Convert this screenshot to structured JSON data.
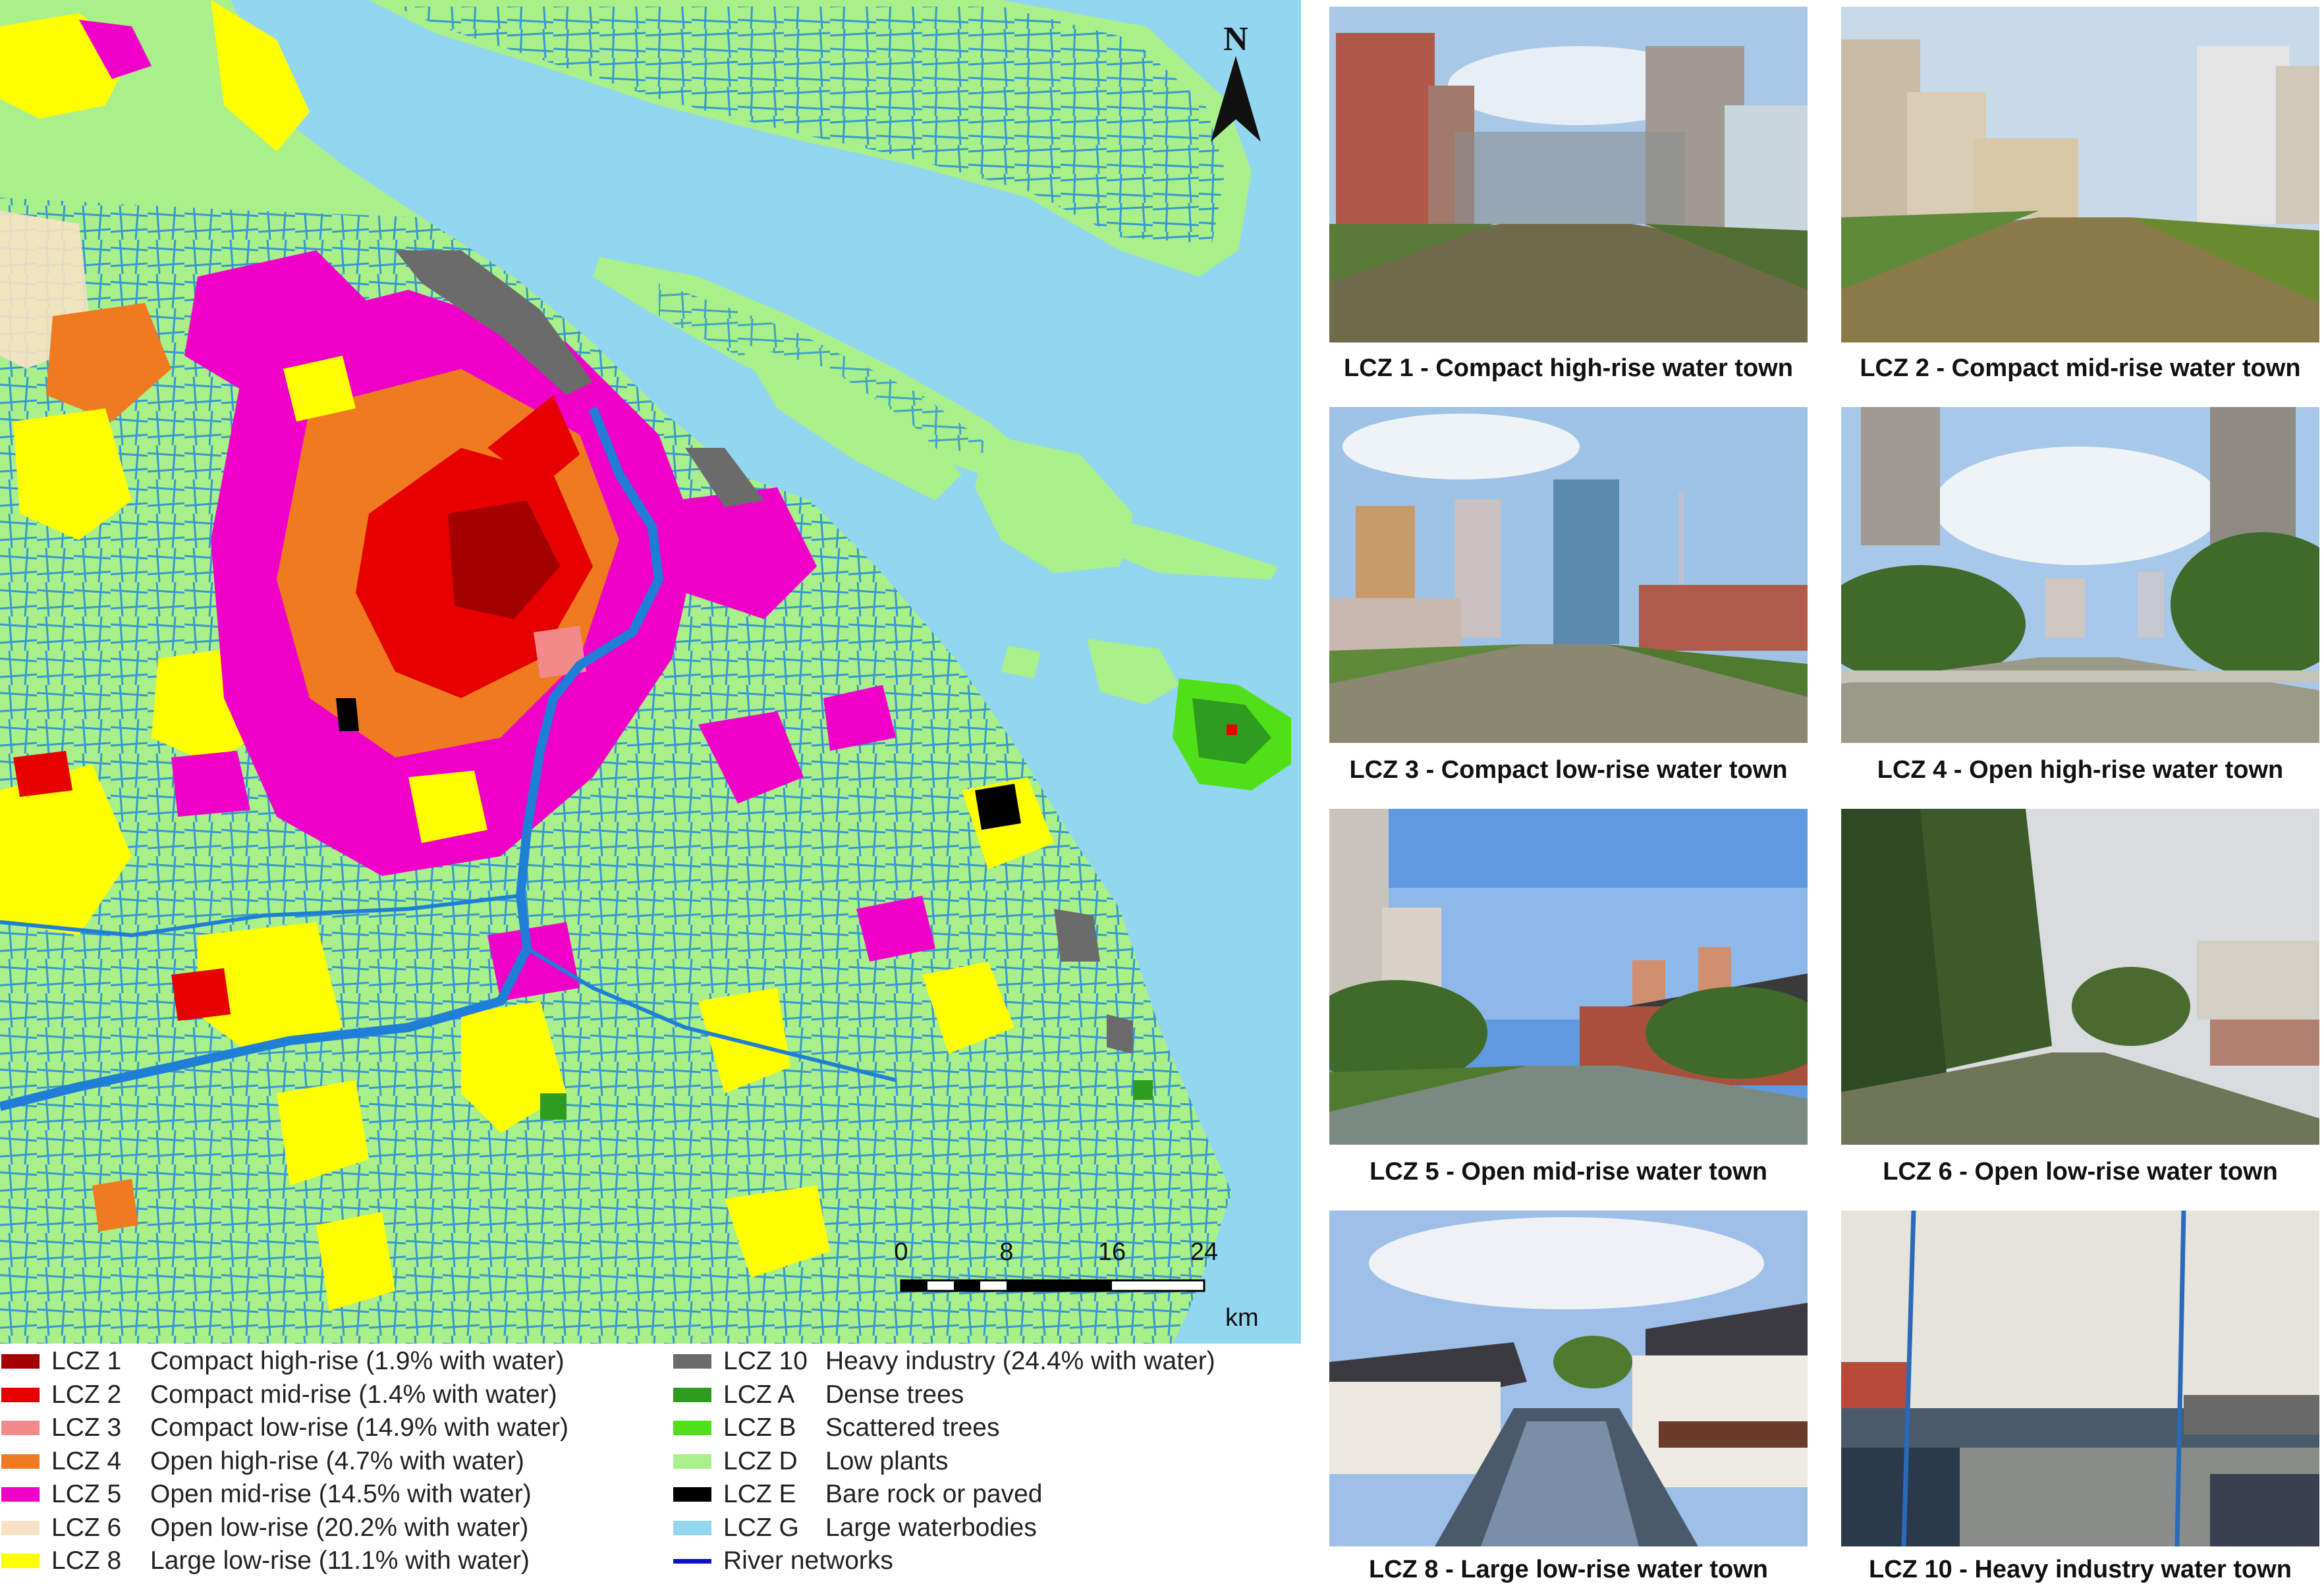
{
  "map": {
    "north_label": "N",
    "scale": {
      "ticks": [
        "0",
        "8",
        "16",
        "24"
      ],
      "unit": "km"
    }
  },
  "legend": {
    "items": [
      {
        "code": "LCZ 1",
        "name": "Compact high-rise (1.9% with water)",
        "color": "#a50000"
      },
      {
        "code": "LCZ 2",
        "name": "Compact mid-rise (1.4% with water)",
        "color": "#e60000"
      },
      {
        "code": "LCZ 3",
        "name": "Compact low-rise (14.9% with water)",
        "color": "#f28a8a"
      },
      {
        "code": "LCZ 4",
        "name": "Open high-rise (4.7% with water)",
        "color": "#f07a20"
      },
      {
        "code": "LCZ 5",
        "name": "Open mid-rise (14.5% with water)",
        "color": "#ee00c8"
      },
      {
        "code": "LCZ 6",
        "name": "Open low-rise (20.2% with water)",
        "color": "#f7e2c4"
      },
      {
        "code": "LCZ 8",
        "name": "Large low-rise (11.1% with water)",
        "color": "#ffff00"
      },
      {
        "code": "LCZ 10",
        "name": "Heavy industry (24.4% with water)",
        "color": "#6b6b6b"
      },
      {
        "code": "LCZ A",
        "name": "Dense trees",
        "color": "#2e9c1e"
      },
      {
        "code": "LCZ B",
        "name": "Scattered trees",
        "color": "#4fe01a"
      },
      {
        "code": "LCZ D",
        "name": "Low plants",
        "color": "#a9f08a"
      },
      {
        "code": "LCZ E",
        "name": "Bare rock or paved",
        "color": "#000000"
      },
      {
        "code": "LCZ G",
        "name": "Large waterbodies",
        "color": "#93d6f0"
      },
      {
        "code": "",
        "name": "River networks",
        "color": "#0b10cc"
      }
    ]
  },
  "photos": [
    {
      "caption": "LCZ 1 - Compact high-rise water town"
    },
    {
      "caption": "LCZ 2 - Compact mid-rise water town"
    },
    {
      "caption": "LCZ 3 - Compact low-rise water town"
    },
    {
      "caption": "LCZ 4 - Open high-rise water town"
    },
    {
      "caption": "LCZ 5 - Open mid-rise water town"
    },
    {
      "caption": "LCZ 6 - Open low-rise water town"
    },
    {
      "caption": "LCZ 8 - Large low-rise water town"
    },
    {
      "caption": "LCZ 10 - Heavy industry water town"
    }
  ]
}
